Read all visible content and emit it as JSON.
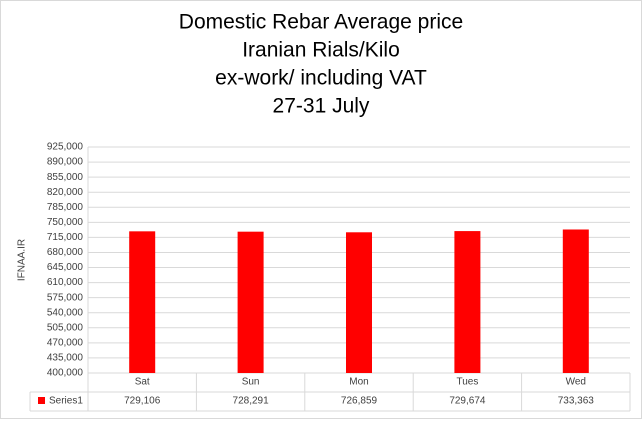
{
  "chart_data": {
    "type": "bar",
    "title_lines": [
      "Domestic Rebar Average price",
      "Iranian Rials/Kilo",
      "ex-work/ including VAT",
      "27-31 July"
    ],
    "y_label": "IFNAA.IR",
    "categories": [
      "Sat",
      "Sun",
      "Mon",
      "Tues",
      "Wed"
    ],
    "series": [
      {
        "name": "Series1",
        "color": "#ff0000",
        "values": [
          729106,
          728291,
          726859,
          729674,
          733363
        ],
        "value_labels": [
          "729,106",
          "728,291",
          "726,859",
          "729,674",
          "733,363"
        ]
      }
    ],
    "ylim": [
      400000,
      925000
    ],
    "yticks": [
      {
        "value": 400000,
        "label": "400,000"
      },
      {
        "value": 435000,
        "label": "435,000"
      },
      {
        "value": 470000,
        "label": "470,000"
      },
      {
        "value": 505000,
        "label": "505,000"
      },
      {
        "value": 540000,
        "label": "540,000"
      },
      {
        "value": 575000,
        "label": "575,000"
      },
      {
        "value": 610000,
        "label": "610,000"
      },
      {
        "value": 645000,
        "label": "645,000"
      },
      {
        "value": 680000,
        "label": "680,000"
      },
      {
        "value": 715000,
        "label": "715,000"
      },
      {
        "value": 750000,
        "label": "750,000"
      },
      {
        "value": 785000,
        "label": "785,000"
      },
      {
        "value": 820000,
        "label": "820,000"
      },
      {
        "value": 855000,
        "label": "855,000"
      },
      {
        "value": 890000,
        "label": "890,000"
      },
      {
        "value": 925000,
        "label": "925,000"
      }
    ],
    "grid": true
  }
}
